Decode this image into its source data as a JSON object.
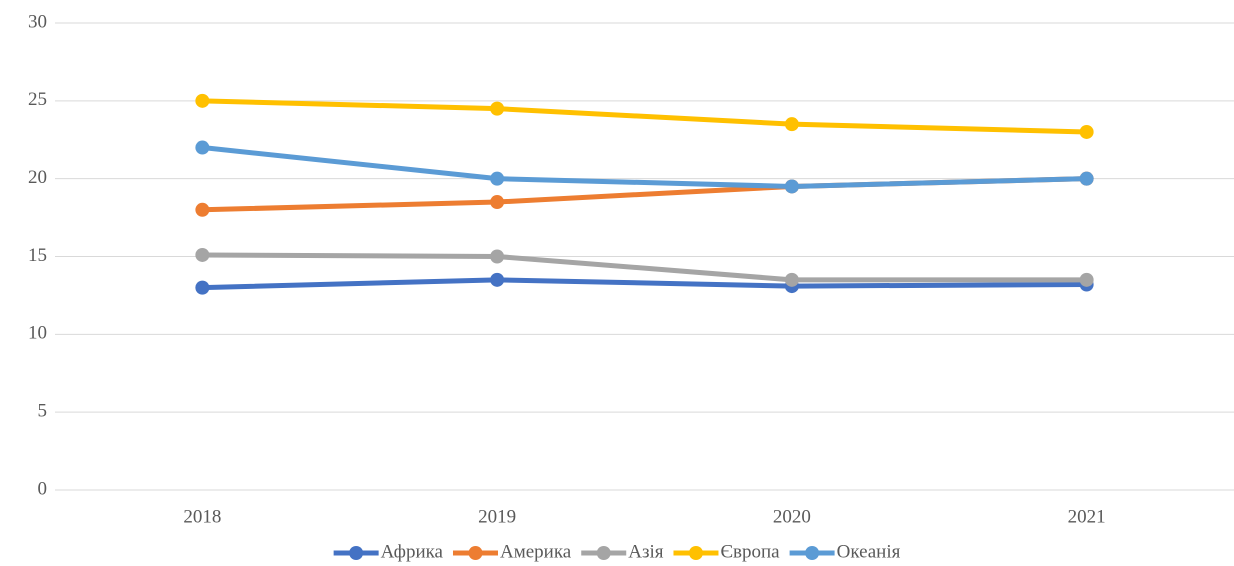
{
  "chart_data": {
    "type": "line",
    "categories": [
      "2018",
      "2019",
      "2020",
      "2021"
    ],
    "series": [
      {
        "name": "Африка",
        "color": "#4472c4",
        "values": [
          13,
          13.5,
          13.1,
          13.2
        ]
      },
      {
        "name": "Америка",
        "color": "#ed7d31",
        "values": [
          18,
          18.5,
          19.5,
          20
        ]
      },
      {
        "name": "Азія",
        "color": "#a5a5a5",
        "values": [
          15.1,
          15,
          13.5,
          13.5
        ]
      },
      {
        "name": "Європа",
        "color": "#ffc000",
        "values": [
          25,
          24.5,
          23.5,
          23
        ]
      },
      {
        "name": "Океанія",
        "color": "#5b9bd5",
        "values": [
          22,
          20,
          19.5,
          20
        ]
      }
    ],
    "ylim": [
      0,
      30
    ],
    "yticks": [
      0,
      5,
      10,
      15,
      20,
      25,
      30
    ],
    "grid": true,
    "legend": "bottom"
  }
}
